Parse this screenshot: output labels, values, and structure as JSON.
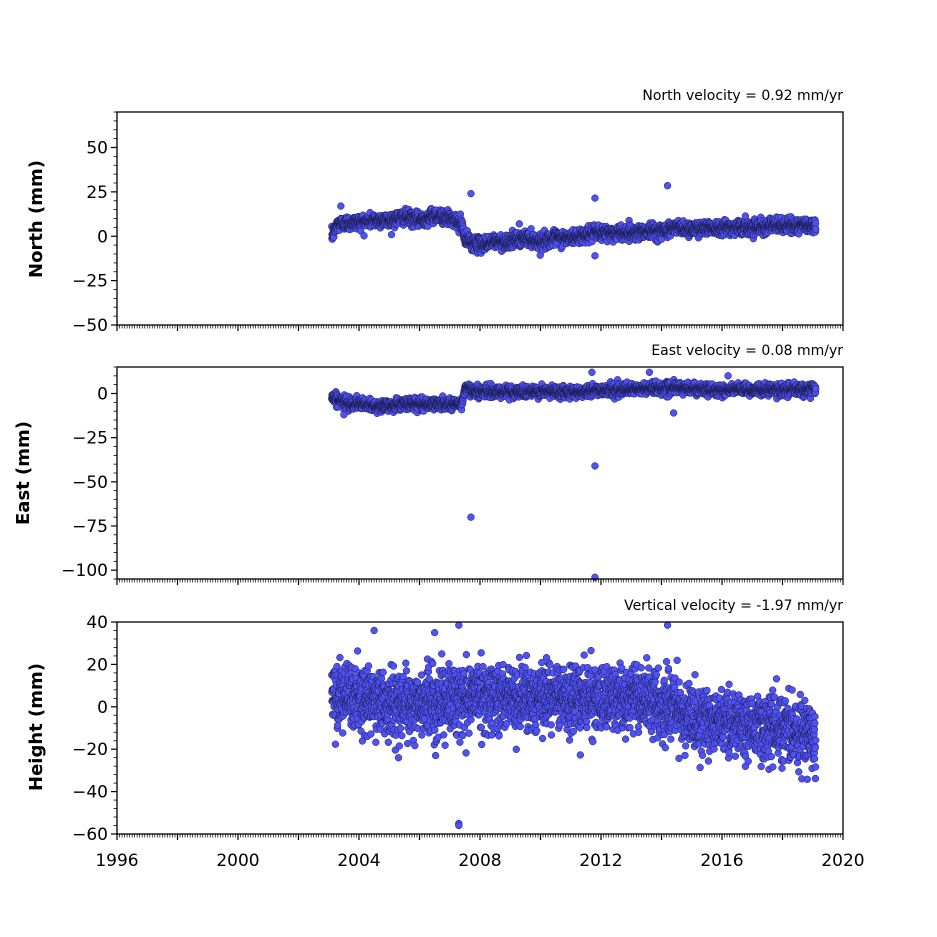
{
  "chart_data": [
    {
      "type": "scatter",
      "name": "north-panel",
      "title": "",
      "annotation": "North velocity = 0.92 mm/yr",
      "ylabel": "North (mm)",
      "xlabel": "",
      "xlim": [
        1996,
        2020
      ],
      "ylim": [
        -50,
        70
      ],
      "yticks": [
        -50,
        -25,
        0,
        25,
        50
      ],
      "ytick_labels": [
        "−50",
        "−25",
        "0",
        "25",
        "50"
      ],
      "xticks": [
        1996,
        1998,
        2000,
        2002,
        2004,
        2006,
        2008,
        2010,
        2012,
        2014,
        2016,
        2018,
        2020
      ],
      "xtick_labels": [],
      "trend": [
        [
          2003.1,
          0
        ],
        [
          2003.3,
          7
        ],
        [
          2004.0,
          8
        ],
        [
          2004.5,
          9
        ],
        [
          2005.0,
          9
        ],
        [
          2005.5,
          11
        ],
        [
          2006.0,
          9
        ],
        [
          2006.5,
          12
        ],
        [
          2007.0,
          10
        ],
        [
          2007.4,
          7
        ],
        [
          2007.5,
          -2
        ],
        [
          2008.0,
          -5
        ],
        [
          2008.5,
          -3
        ],
        [
          2009.0,
          -3
        ],
        [
          2009.5,
          -1
        ],
        [
          2010.0,
          -3
        ],
        [
          2010.5,
          -1
        ],
        [
          2011.0,
          -1
        ],
        [
          2011.5,
          1
        ],
        [
          2012.0,
          2
        ],
        [
          2012.5,
          2
        ],
        [
          2013.0,
          2
        ],
        [
          2013.5,
          3
        ],
        [
          2014.0,
          3
        ],
        [
          2014.5,
          5
        ],
        [
          2015.0,
          4
        ],
        [
          2015.5,
          5
        ],
        [
          2016.0,
          5
        ],
        [
          2016.5,
          5
        ],
        [
          2017.0,
          5
        ],
        [
          2017.5,
          6
        ],
        [
          2018.0,
          6
        ],
        [
          2018.5,
          6
        ],
        [
          2019.1,
          6
        ]
      ],
      "noise_sd": 2.0,
      "outliers": [
        [
          2007.7,
          24
        ],
        [
          2011.8,
          21.5
        ],
        [
          2011.8,
          -11
        ],
        [
          2014.2,
          28.5
        ],
        [
          2003.4,
          17
        ],
        [
          2009.3,
          7
        ]
      ]
    },
    {
      "type": "scatter",
      "name": "east-panel",
      "title": "",
      "annotation": "East velocity = 0.08 mm/yr",
      "ylabel": "East (mm)",
      "xlabel": "",
      "xlim": [
        1996,
        2020
      ],
      "ylim": [
        -105,
        15
      ],
      "yticks": [
        -100,
        -75,
        -50,
        -25,
        0
      ],
      "ytick_labels": [
        "−100",
        "−75",
        "−50",
        "−25",
        "0"
      ],
      "xticks": [
        1996,
        1998,
        2000,
        2002,
        2004,
        2006,
        2008,
        2010,
        2012,
        2014,
        2016,
        2018,
        2020
      ],
      "xtick_labels": [],
      "trend": [
        [
          2003.1,
          -2
        ],
        [
          2003.5,
          -5
        ],
        [
          2004.0,
          -6
        ],
        [
          2004.5,
          -7
        ],
        [
          2005.0,
          -7
        ],
        [
          2005.5,
          -6
        ],
        [
          2006.0,
          -6
        ],
        [
          2006.5,
          -6
        ],
        [
          2007.0,
          -6
        ],
        [
          2007.4,
          -6
        ],
        [
          2007.5,
          3
        ],
        [
          2008.0,
          1
        ],
        [
          2008.5,
          1
        ],
        [
          2009.0,
          1
        ],
        [
          2009.5,
          1
        ],
        [
          2010.0,
          1
        ],
        [
          2010.5,
          1
        ],
        [
          2011.0,
          1
        ],
        [
          2011.5,
          1
        ],
        [
          2012.0,
          2
        ],
        [
          2012.5,
          2
        ],
        [
          2013.0,
          2
        ],
        [
          2013.5,
          3
        ],
        [
          2014.0,
          3
        ],
        [
          2014.5,
          3
        ],
        [
          2015.0,
          3
        ],
        [
          2015.5,
          2
        ],
        [
          2016.0,
          2
        ],
        [
          2016.5,
          2
        ],
        [
          2017.0,
          2
        ],
        [
          2017.5,
          2
        ],
        [
          2018.0,
          2
        ],
        [
          2018.5,
          2
        ],
        [
          2019.1,
          3
        ]
      ],
      "noise_sd": 1.6,
      "outliers": [
        [
          2007.7,
          -70
        ],
        [
          2011.8,
          -41
        ],
        [
          2011.8,
          -104
        ],
        [
          2011.7,
          12
        ],
        [
          2013.6,
          12
        ],
        [
          2014.4,
          -11
        ],
        [
          2016.2,
          10
        ],
        [
          2003.5,
          -12
        ]
      ]
    },
    {
      "type": "scatter",
      "name": "height-panel",
      "title": "",
      "annotation": "Vertical velocity = -1.97 mm/yr",
      "ylabel": "Height (mm)",
      "xlabel": "",
      "xlim": [
        1996,
        2020
      ],
      "ylim": [
        -60,
        40
      ],
      "yticks": [
        -60,
        -40,
        -20,
        0,
        20,
        40
      ],
      "ytick_labels": [
        "−60",
        "−40",
        "−20",
        "0",
        "20",
        "40"
      ],
      "xticks": [
        1996,
        1998,
        2000,
        2002,
        2004,
        2006,
        2008,
        2010,
        2012,
        2014,
        2016,
        2018,
        2020
      ],
      "xtick_labels": [
        "1996",
        "",
        "2000",
        "",
        "2004",
        "",
        "2008",
        "",
        "2012",
        "",
        "2016",
        "",
        "2020"
      ],
      "trend": [
        [
          2003.1,
          5
        ],
        [
          2004.0,
          4
        ],
        [
          2005.0,
          2
        ],
        [
          2006.0,
          1
        ],
        [
          2007.0,
          3
        ],
        [
          2008.0,
          6
        ],
        [
          2009.0,
          4
        ],
        [
          2010.0,
          5
        ],
        [
          2011.0,
          5
        ],
        [
          2012.0,
          3
        ],
        [
          2013.0,
          5
        ],
        [
          2014.0,
          0
        ],
        [
          2015.0,
          -5
        ],
        [
          2016.0,
          -7
        ],
        [
          2017.0,
          -9
        ],
        [
          2018.0,
          -10
        ],
        [
          2019.1,
          -13
        ]
      ],
      "noise_sd": 7.5,
      "outliers": [
        [
          2007.3,
          -55
        ],
        [
          2007.3,
          -56
        ],
        [
          2007.3,
          38.5
        ],
        [
          2014.2,
          38.5
        ],
        [
          2004.5,
          36
        ],
        [
          2006.5,
          35
        ]
      ]
    }
  ],
  "colors": {
    "marker_fill": "#4f52f4",
    "marker_edge": "#1a1a4a",
    "axis": "#000000"
  }
}
